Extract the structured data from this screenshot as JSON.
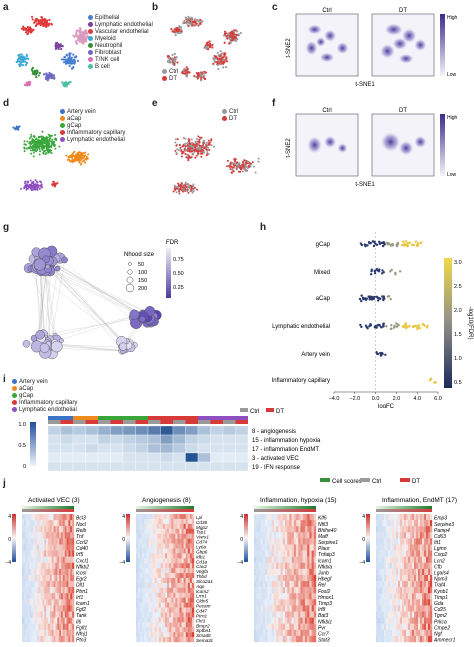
{
  "panels": {
    "a": {
      "label": "a",
      "legend": [
        {
          "name": "Epithelial",
          "color": "#4a7fd0"
        },
        {
          "name": "Lymphatic endothelial",
          "color": "#7a3fa0"
        },
        {
          "name": "Vascular endothelial",
          "color": "#e03b3b"
        },
        {
          "name": "Myeloid",
          "color": "#3fa9d6"
        },
        {
          "name": "Neutrophil",
          "color": "#3a8f3a"
        },
        {
          "name": "Fibroblast",
          "color": "#6b6bc4"
        },
        {
          "name": "T/NK cell",
          "color": "#d96fb0"
        },
        {
          "name": "B cell",
          "color": "#4fbfa8"
        }
      ]
    },
    "b": {
      "label": "b",
      "legend": [
        {
          "name": "Ctrl",
          "color": "#9a9a9a"
        },
        {
          "name": "DT",
          "color": "#d83a3a"
        }
      ]
    },
    "c": {
      "label": "c",
      "facets": [
        "Ctrl",
        "DT"
      ],
      "xlabel": "t-SNE1",
      "ylabel": "t-SNE2",
      "scale_high": "High",
      "scale_low": "Low"
    },
    "d": {
      "label": "d",
      "legend": [
        {
          "name": "Artery vein",
          "color": "#3a73c8"
        },
        {
          "name": "aCap",
          "color": "#f08a1c"
        },
        {
          "name": "gCap",
          "color": "#3aa63a"
        },
        {
          "name": "Inflammatory capillary",
          "color": "#d83a3a"
        },
        {
          "name": "Lymphatic endothelial",
          "color": "#8e4fc0"
        }
      ]
    },
    "e": {
      "label": "e",
      "legend": [
        {
          "name": "Ctrl",
          "color": "#9a9a9a"
        },
        {
          "name": "DT",
          "color": "#d83a3a"
        }
      ]
    },
    "f": {
      "label": "f",
      "facets": [
        "Ctrl",
        "DT"
      ],
      "xlabel": "t-SNE1",
      "ylabel": "t-SNE2",
      "scale_high": "High",
      "scale_low": "Low"
    },
    "g": {
      "label": "g",
      "nhood_title": "Nhood size",
      "nhood_sizes": [
        "50",
        "100",
        "150",
        "200"
      ],
      "fdr_title": "FDR",
      "fdr_ticks": [
        "0.75",
        "0.50",
        "0.25"
      ]
    },
    "h": {
      "label": "h",
      "xlabel": "logFC",
      "ylabel": "-log10(FDR)"
    },
    "i": {
      "label": "i",
      "legend": [
        {
          "name": "Artery vein",
          "color": "#3a73c8"
        },
        {
          "name": "aCap",
          "color": "#f08a1c"
        },
        {
          "name": "gCap",
          "color": "#3aa63a"
        },
        {
          "name": "Inflammatory capillary",
          "color": "#d83a3a"
        },
        {
          "name": "Lymphatic endothelial",
          "color": "#8e4fc0"
        }
      ],
      "cond_legend": [
        {
          "name": "Ctrl",
          "color": "#9a9a9a"
        },
        {
          "name": "DT",
          "color": "#d83a3a"
        }
      ],
      "rows": [
        "8 - angiogenesis",
        "15 - inflammation hypoxia",
        "17 - inflammation EndMT",
        "3 - activated VEC",
        "19 - IFN response"
      ],
      "scale": [
        "1.0",
        "0.5",
        "0"
      ]
    },
    "j": {
      "label": "j",
      "legend": [
        {
          "name": "Cell scores",
          "color": "#3a8f3a"
        },
        {
          "name": "Ctrl",
          "color": "#9a9a9a"
        },
        {
          "name": "DT",
          "color": "#d83a3a"
        }
      ],
      "scale": [
        "4",
        "0",
        "−4"
      ],
      "blocks": [
        {
          "title": "Activated VEC (3)",
          "genes": [
            "Bcl3",
            "Nocl",
            "Relb",
            "Tnf",
            "Ccrl2",
            "Cd40",
            "Irf5",
            "Cxcl1",
            "Nfkb2",
            "Icosl",
            "Egr2",
            "Dll1",
            "Ptrn1",
            "Irf1",
            "Icam1",
            "Fgf2",
            "Tank",
            "Il6",
            "Fgfl1",
            "Nfnj1",
            "Ptn3"
          ]
        },
        {
          "title": "Angiogenesis (8)",
          "genes": [
            "Lpl",
            "Cd36",
            "Mgp2",
            "Tsp1",
            "Vwrs1",
            "Cd74",
            "Ly6a",
            "Gbp6",
            "Idb1",
            "Cd1a",
            "Cav2",
            "Vegfa",
            "Thbd",
            "Slco2a1",
            "Aqp",
            "Icam2",
            "Lrrn1",
            "Cldn5",
            "Pecam",
            "Cd47",
            "Ptrn1",
            "Flrt3",
            "Bmpr2",
            "Sptbn1",
            "Smad6",
            "Sema3c"
          ]
        },
        {
          "title": "Inflammation, hypoxia (15)",
          "genes": [
            "Klf6",
            "Nfil3",
            "Bhlhe40",
            "Maff",
            "Serpine1",
            "Plaur",
            "Tnfaip3",
            "Icam1",
            "Nfkbia",
            "Junb",
            "Hbegf",
            "Rel",
            "Fosl2",
            "Hmox1",
            "Timp3",
            "Irf8",
            "Bat3",
            "Nfkbiz",
            "Pvr",
            "Ccr7",
            "Stat3"
          ]
        },
        {
          "title": "Inflammation, EndMT (17)",
          "genes": [
            "Emp3",
            "Serpine3",
            "Pamp4",
            "Cd63",
            "Itt1",
            "Lgmn",
            "Csrp2",
            "Lcn2",
            "Cfb",
            "Lgals4",
            "Npm3",
            "Traf4",
            "Kynb1",
            "Timp1",
            "Gda",
            "Cd25",
            "Tgm2",
            "Prkca",
            "Cmpe2",
            "Ngf",
            "Ammecr1"
          ]
        }
      ]
    }
  }
}
